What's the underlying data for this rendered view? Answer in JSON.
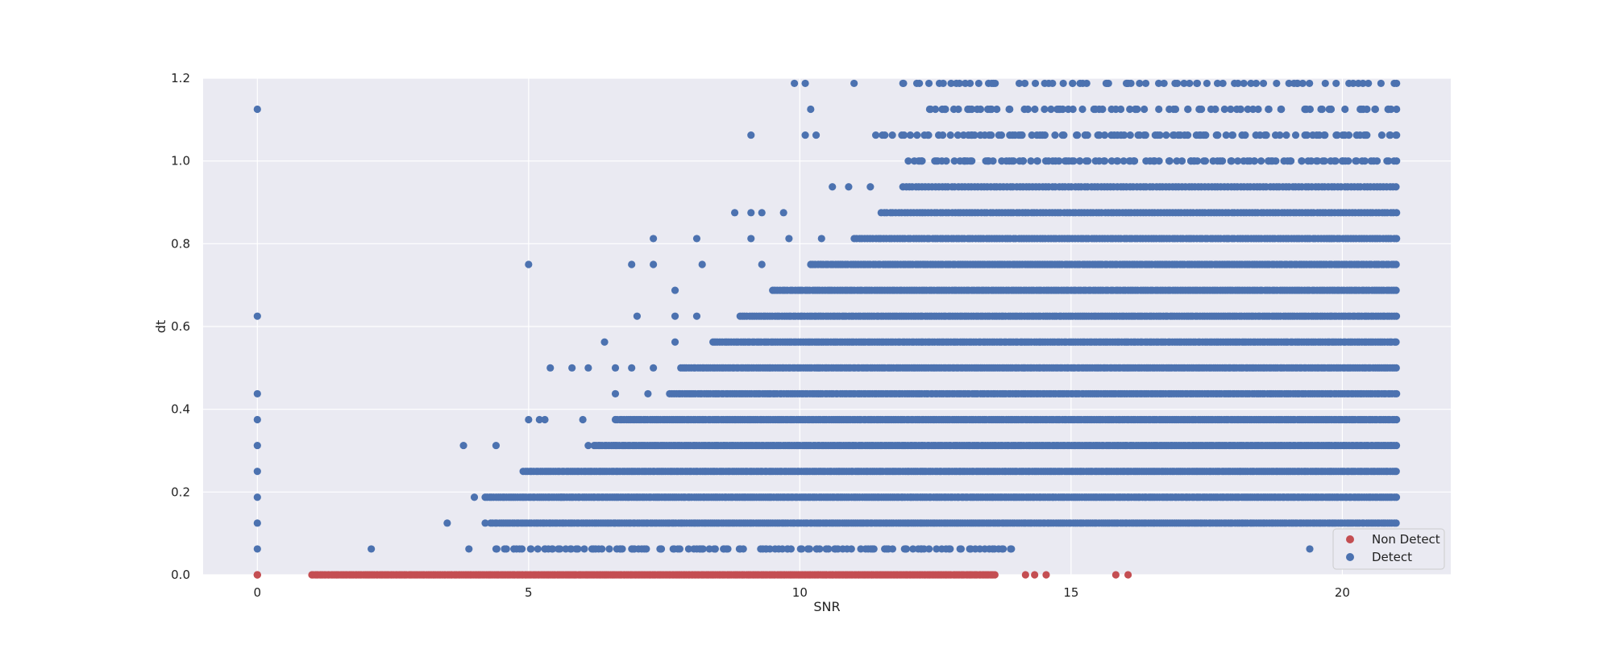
{
  "chart_data": {
    "type": "scatter",
    "xlabel": "SNR",
    "ylabel": "dt",
    "xlim": [
      -1,
      22
    ],
    "ylim": [
      0,
      1.2
    ],
    "x_ticks": [
      0,
      5,
      10,
      15,
      20
    ],
    "x_tick_labels": [
      "0",
      "5",
      "10",
      "15",
      "20"
    ],
    "y_ticks": [
      0.0,
      0.2,
      0.4,
      0.6,
      0.8,
      1.0,
      1.2
    ],
    "y_tick_labels": [
      "0.0",
      "0.2",
      "0.4",
      "0.6",
      "0.8",
      "1.0",
      "1.2"
    ],
    "grid": true,
    "legend_position": "bottom-right",
    "background_color": "#eaeaf2",
    "grid_color": "#ffffff",
    "series": [
      {
        "name": "Non Detect",
        "color": "#c44e52",
        "points": [
          [
            0,
            0
          ],
          [
            0,
            0
          ],
          [
            0,
            0
          ]
        ],
        "bands": [
          {
            "y": 0,
            "x_start": 1.0,
            "x_end": 13.6,
            "density": 2.0
          },
          {
            "y": 0,
            "x_start": 13.6,
            "x_end": 16.1,
            "density": 0.25
          }
        ]
      },
      {
        "name": "Detect",
        "color": "#4c72b0",
        "points": [
          [
            0,
            1.125
          ],
          [
            0,
            0.625
          ],
          [
            0,
            0.4375
          ],
          [
            0,
            0.375
          ],
          [
            0,
            0.3125
          ],
          [
            0,
            0.25
          ],
          [
            0,
            0.1875
          ],
          [
            0,
            0.125
          ],
          [
            0,
            0.0625
          ],
          [
            2.1,
            0.0625
          ],
          [
            3.5,
            0.125
          ],
          [
            3.8,
            0.3125
          ],
          [
            4.4,
            0.3125
          ],
          [
            5.0,
            0.75
          ],
          [
            19.4,
            0.0625
          ],
          [
            9.9,
            1.1875
          ],
          [
            10.1,
            1.1875
          ],
          [
            11.0,
            1.1875
          ],
          [
            10.2,
            1.125
          ],
          [
            9.1,
            1.0625
          ],
          [
            10.1,
            1.0625
          ],
          [
            10.3,
            1.0625
          ],
          [
            10.6,
            0.9375
          ],
          [
            10.9,
            0.9375
          ],
          [
            11.3,
            0.9375
          ],
          [
            8.8,
            0.875
          ],
          [
            9.1,
            0.875
          ],
          [
            9.3,
            0.875
          ],
          [
            9.7,
            0.875
          ],
          [
            7.3,
            0.8125
          ],
          [
            8.1,
            0.8125
          ],
          [
            9.1,
            0.8125
          ],
          [
            9.8,
            0.8125
          ],
          [
            10.4,
            0.8125
          ],
          [
            6.9,
            0.75
          ],
          [
            7.3,
            0.75
          ],
          [
            8.2,
            0.75
          ],
          [
            9.3,
            0.75
          ],
          [
            7.7,
            0.6875
          ],
          [
            7.0,
            0.625
          ],
          [
            7.7,
            0.625
          ],
          [
            8.1,
            0.625
          ],
          [
            6.4,
            0.5625
          ],
          [
            7.7,
            0.5625
          ],
          [
            5.4,
            0.5
          ],
          [
            5.8,
            0.5
          ],
          [
            6.1,
            0.5
          ],
          [
            6.6,
            0.5
          ],
          [
            6.9,
            0.5
          ],
          [
            7.3,
            0.5
          ],
          [
            6.6,
            0.4375
          ],
          [
            7.2,
            0.4375
          ],
          [
            5.0,
            0.375
          ],
          [
            5.2,
            0.375
          ],
          [
            5.3,
            0.375
          ],
          [
            6.0,
            0.375
          ],
          [
            4.0,
            0.1875
          ],
          [
            3.9,
            0.0625
          ],
          [
            4.2,
            0.125
          ],
          [
            5.6,
            0.1875
          ],
          [
            6.1,
            0.3125
          ]
        ],
        "rows": [
          {
            "y": 0.0625,
            "x_start": 4.4,
            "x_end": 13.9,
            "density": 0.9
          },
          {
            "y": 0.125,
            "x_start": 4.3,
            "x_end": 21.0,
            "density": 1.5
          },
          {
            "y": 0.1875,
            "x_start": 4.2,
            "x_end": 21.0,
            "density": 1.5
          },
          {
            "y": 0.25,
            "x_start": 4.9,
            "x_end": 21.0,
            "density": 1.5
          },
          {
            "y": 0.3125,
            "x_start": 6.2,
            "x_end": 21.0,
            "density": 1.5
          },
          {
            "y": 0.375,
            "x_start": 6.6,
            "x_end": 21.0,
            "density": 1.5
          },
          {
            "y": 0.4375,
            "x_start": 7.6,
            "x_end": 21.0,
            "density": 1.5
          },
          {
            "y": 0.5,
            "x_start": 7.8,
            "x_end": 21.0,
            "density": 1.5
          },
          {
            "y": 0.5625,
            "x_start": 8.4,
            "x_end": 21.0,
            "density": 1.4
          },
          {
            "y": 0.625,
            "x_start": 8.9,
            "x_end": 21.0,
            "density": 1.4
          },
          {
            "y": 0.6875,
            "x_start": 9.5,
            "x_end": 21.0,
            "density": 1.3
          },
          {
            "y": 0.75,
            "x_start": 10.2,
            "x_end": 21.0,
            "density": 1.3
          },
          {
            "y": 0.8125,
            "x_start": 11.0,
            "x_end": 21.0,
            "density": 1.2
          },
          {
            "y": 0.875,
            "x_start": 11.5,
            "x_end": 21.0,
            "density": 1.1
          },
          {
            "y": 0.9375,
            "x_start": 11.9,
            "x_end": 21.0,
            "density": 1.0
          },
          {
            "y": 1.0,
            "x_start": 12.0,
            "x_end": 21.0,
            "density": 0.9
          },
          {
            "y": 1.0625,
            "x_start": 11.4,
            "x_end": 21.0,
            "density": 0.8
          },
          {
            "y": 1.125,
            "x_start": 12.3,
            "x_end": 21.0,
            "density": 0.7
          },
          {
            "y": 1.1875,
            "x_start": 11.9,
            "x_end": 21.0,
            "density": 0.6
          }
        ]
      }
    ]
  }
}
